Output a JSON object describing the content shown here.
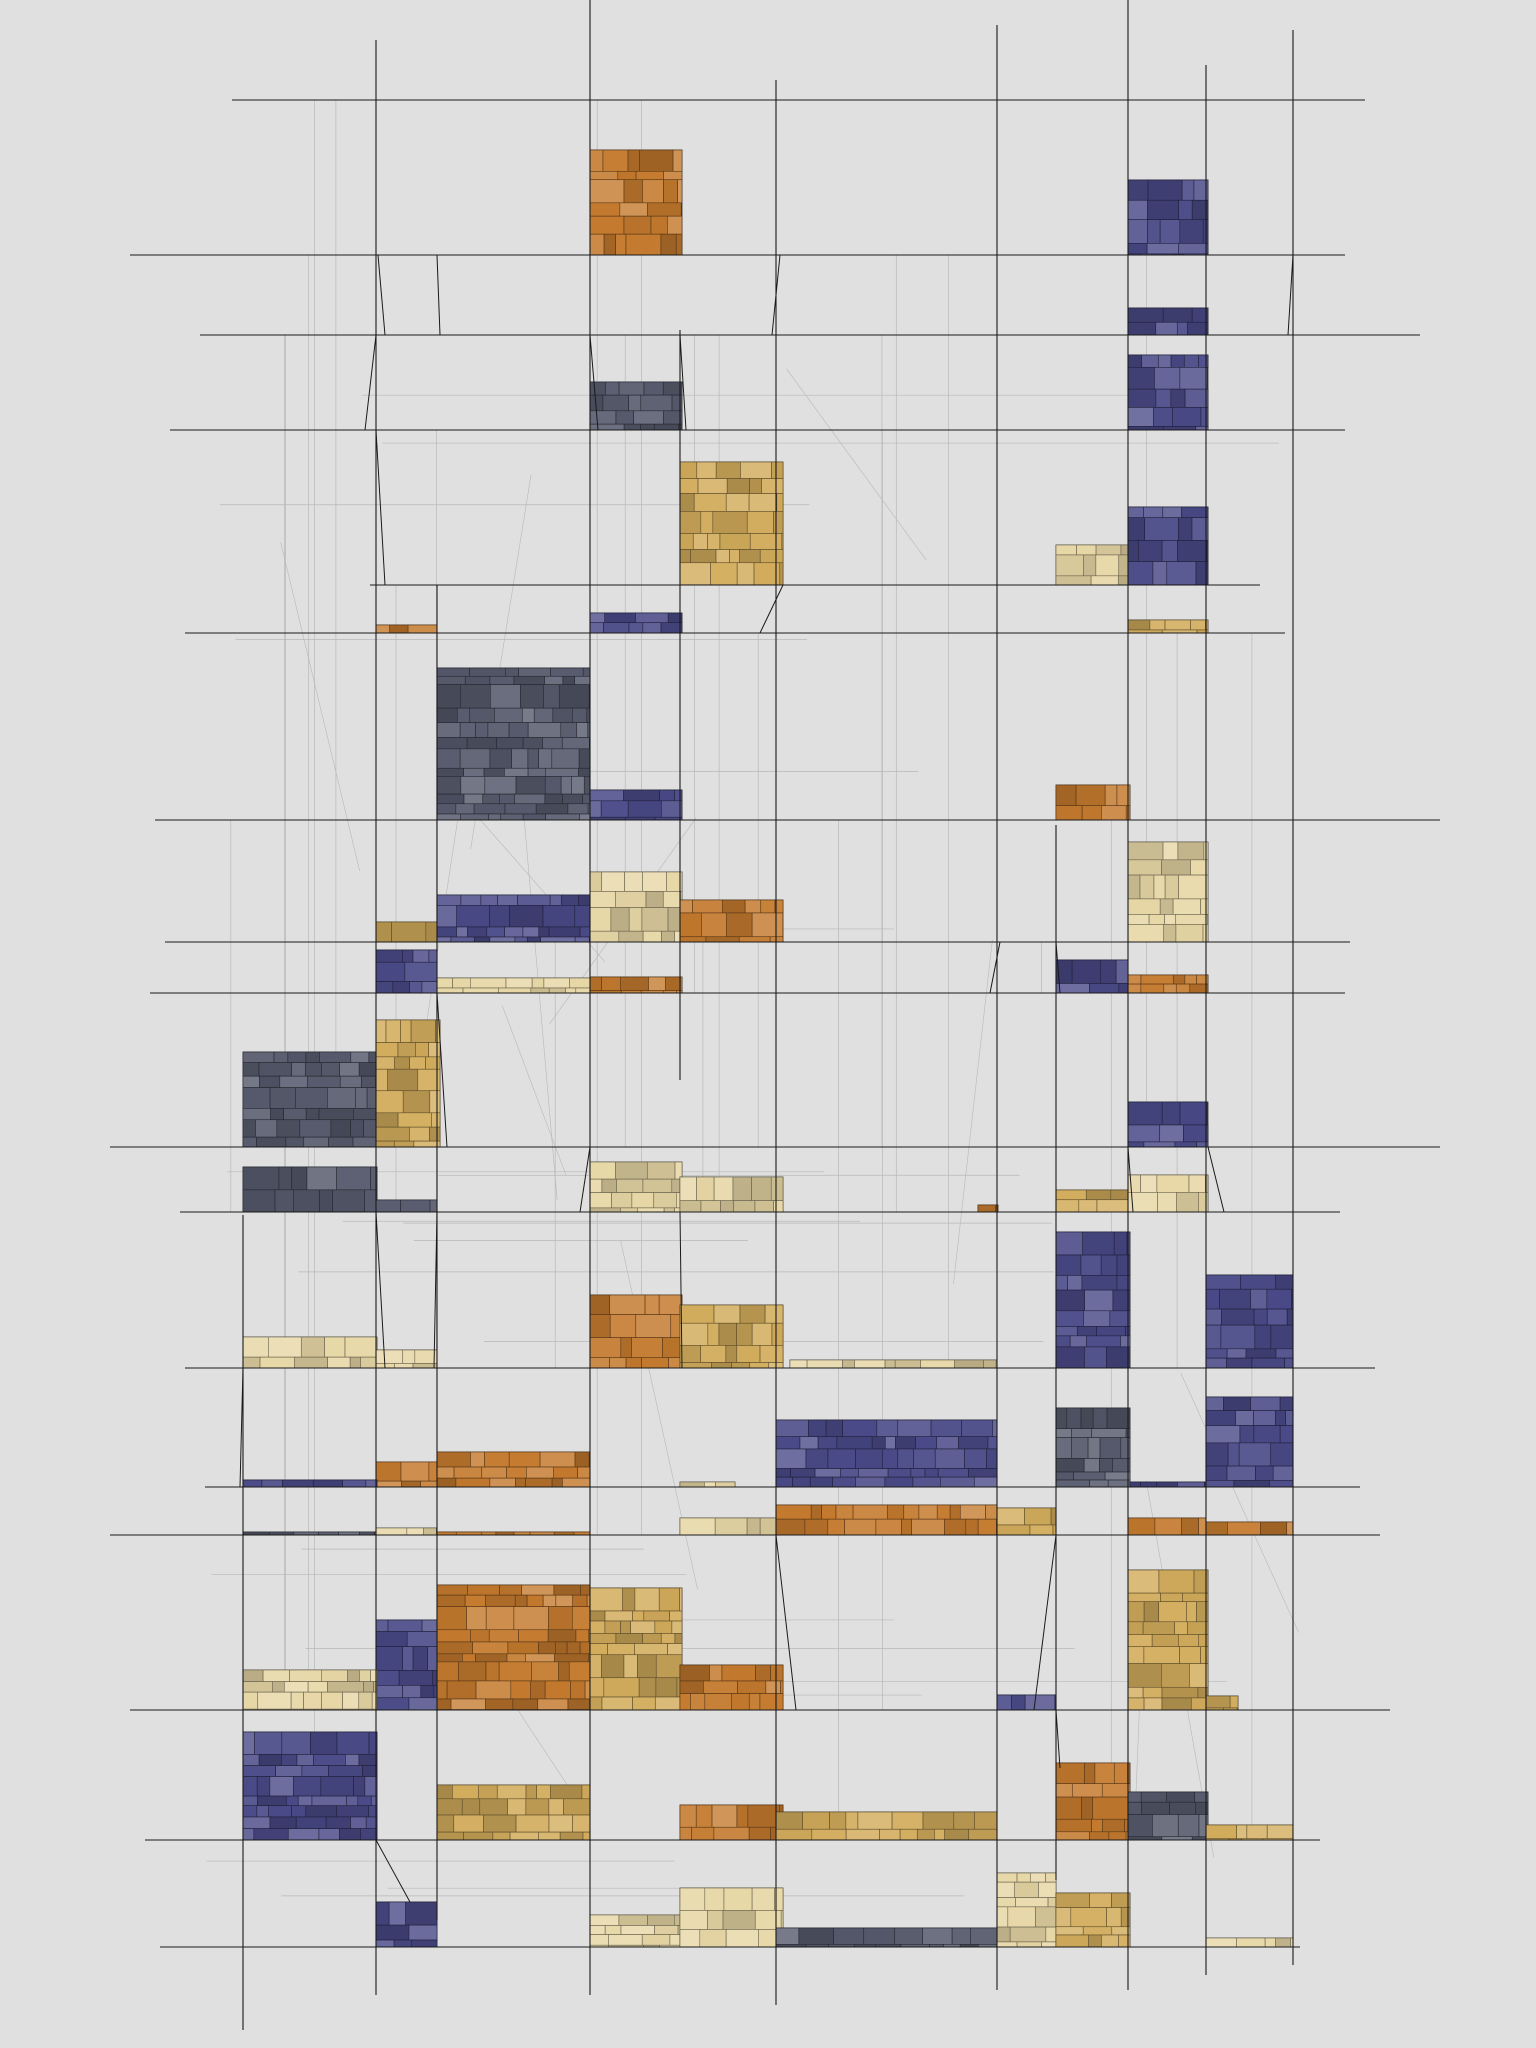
{
  "artwork": {
    "background": "#e0e0e0",
    "line_color": "#1a1a1a",
    "faint_line_color": "#b8b8b8",
    "palette": {
      "orange": "#c47a2e",
      "tan": "#d2ac5c",
      "cream": "#e7d7a6",
      "navy": "#4a4a88",
      "slate": "#565a6c"
    }
  }
}
